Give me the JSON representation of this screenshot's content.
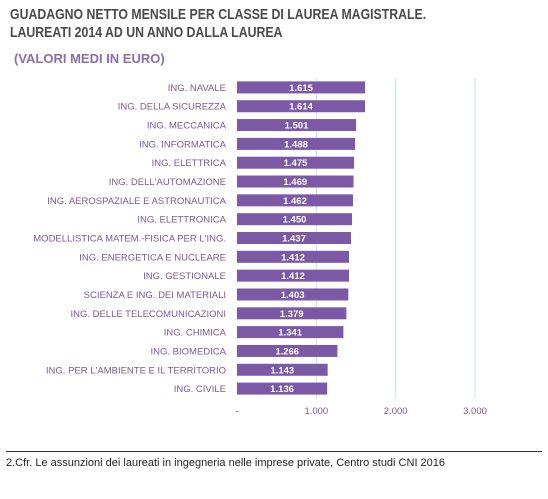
{
  "title_line1": "GUADAGNO NETTO MENSILE PER CLASSE DI LAUREA MAGISTRALE.",
  "title_line2": "LAUREATI 2014 AD UN ANNO DALLA LAUREA",
  "subtitle": "(VALORI MEDI IN EURO)",
  "footnote": "2.Cfr. Le assunzioni dei laureati in ingegneria nelle imprese private, Centro studi CNI 2016",
  "colors": {
    "bar": "#7b59a6",
    "bar_label": "#ffffff",
    "category": "#7a5a9a",
    "tick": "#7a5a9a",
    "grid": "#cfe0f2"
  },
  "chart_data": {
    "type": "bar",
    "orientation": "horizontal",
    "categories": [
      "ING. NAVALE",
      "ING. DELLA SICUREZZA",
      "ING. MECCANICA",
      "ING. INFORMATICA",
      "ING. ELETTRICA",
      "ING. DELL'AUTOMAZIONE",
      "ING. AEROSPAZIALE E ASTRONAUTICA",
      "ING. ELETTRONICA",
      "MODELLISTICA MATEM.-FISICA PER L'ING.",
      "ING. ENERGETICA E NUCLEARE",
      "ING. GESTIONALE",
      "SCIENZA E ING. DEI MATERIALI",
      "ING. DELLE TELECOMUNICAZIONI",
      "ING. CHIMICA",
      "ING. BIOMEDICA",
      "ING. PER L'AMBIENTE E IL TERRITORIO",
      "ING. CIVILE"
    ],
    "values": [
      1615,
      1614,
      1501,
      1488,
      1475,
      1469,
      1462,
      1450,
      1437,
      1412,
      1412,
      1403,
      1379,
      1341,
      1266,
      1143,
      1136
    ],
    "value_labels": [
      "1.615",
      "1.614",
      "1.501",
      "1.488",
      "1.475",
      "1.469",
      "1.462",
      "1.450",
      "1.437",
      "1.412",
      "1.412",
      "1.403",
      "1.379",
      "1.341",
      "1.266",
      "1.143",
      "1.136"
    ],
    "xlim": [
      0,
      3000
    ],
    "x_ticks": [
      0,
      1000,
      2000,
      3000
    ],
    "x_tick_labels": [
      "-",
      "1.000",
      "2.000",
      "3.000"
    ],
    "grid": true
  }
}
